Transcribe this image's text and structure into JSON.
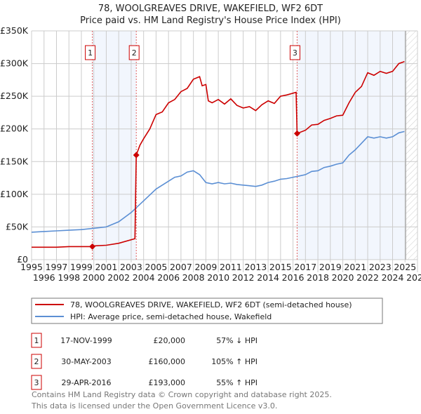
{
  "chart_data": {
    "type": "line",
    "title": "78, WOOLGREAVES DRIVE, WAKEFIELD, WF2 6DT",
    "subtitle": "Price paid vs. HM Land Registry's House Price Index (HPI)",
    "xlim": [
      1995,
      2026
    ],
    "ylim": [
      0,
      350000
    ],
    "x_ticks": [
      "1995",
      "1996",
      "1997",
      "1998",
      "1999",
      "2000",
      "2001",
      "2002",
      "2003",
      "2004",
      "2005",
      "2006",
      "2007",
      "2008",
      "2009",
      "2010",
      "2011",
      "2012",
      "2013",
      "2014",
      "2015",
      "2016",
      "2017",
      "2018",
      "2019",
      "2020",
      "2021",
      "2022",
      "2023",
      "2024",
      "2025",
      "2026"
    ],
    "y_ticks": [
      {
        "value": 0,
        "label": "£0"
      },
      {
        "value": 50000,
        "label": "£50K"
      },
      {
        "value": 100000,
        "label": "£100K"
      },
      {
        "value": 150000,
        "label": "£150K"
      },
      {
        "value": 200000,
        "label": "£200K"
      },
      {
        "value": 250000,
        "label": "£250K"
      },
      {
        "value": 300000,
        "label": "£300K"
      },
      {
        "value": 350000,
        "label": "£350K"
      }
    ],
    "grid": true,
    "data_end": 2025.05,
    "shaded_periods": [
      [
        1999.88,
        2003.41
      ],
      [
        2016.33,
        2025.05
      ]
    ],
    "series": [
      {
        "name": "78, WOOLGREAVES DRIVE, WAKEFIELD, WF2 6DT (semi-detached house)",
        "color": "#cc0000",
        "x": [
          1995,
          1996,
          1997,
          1998,
          1999.88,
          2000,
          2001,
          2002,
          2003.3,
          2003.41,
          2003.7,
          2004,
          2004.5,
          2005,
          2005.5,
          2006,
          2006.5,
          2007,
          2007.5,
          2008,
          2008.5,
          2008.7,
          2009,
          2009.2,
          2009.5,
          2010,
          2010.5,
          2011,
          2011.5,
          2012,
          2012.5,
          2013,
          2013.5,
          2014,
          2014.5,
          2015,
          2015.5,
          2016.25,
          2016.33,
          2017,
          2017.5,
          2018,
          2018.5,
          2019,
          2019.5,
          2020,
          2020.5,
          2021,
          2021.5,
          2022,
          2022.5,
          2023,
          2023.5,
          2024,
          2024.5,
          2024.95
        ],
        "y": [
          19000,
          19000,
          19000,
          20000,
          20000,
          21000,
          22000,
          25000,
          32000,
          160000,
          175000,
          185000,
          200000,
          222000,
          226000,
          240000,
          245000,
          257000,
          262000,
          276000,
          280000,
          266000,
          268000,
          243000,
          240000,
          245000,
          238000,
          246000,
          236000,
          232000,
          234000,
          228000,
          237000,
          243000,
          239000,
          250000,
          252000,
          256000,
          193000,
          198000,
          206000,
          207000,
          213000,
          216000,
          220000,
          221000,
          240000,
          256000,
          265000,
          286000,
          282000,
          288000,
          285000,
          288000,
          300000,
          303000
        ]
      },
      {
        "name": "HPI: Average price, semi-detached house, Wakefield",
        "color": "#5b8fd4",
        "x": [
          1995,
          1996,
          1997,
          1998,
          1999,
          2000,
          2001,
          2002,
          2003,
          2004,
          2005,
          2006,
          2006.5,
          2007,
          2007.5,
          2008,
          2008.5,
          2009,
          2009.5,
          2010,
          2010.5,
          2011,
          2011.5,
          2012,
          2012.5,
          2013,
          2013.5,
          2014,
          2014.5,
          2015,
          2015.5,
          2016,
          2016.5,
          2017,
          2017.5,
          2018,
          2018.5,
          2019,
          2019.5,
          2020,
          2020.5,
          2021,
          2021.5,
          2022,
          2022.5,
          2023,
          2023.5,
          2024,
          2024.5,
          2024.95
        ],
        "y": [
          42000,
          43000,
          44000,
          45000,
          46000,
          48000,
          50000,
          58000,
          72000,
          90000,
          108000,
          120000,
          126000,
          128000,
          134000,
          136000,
          130000,
          118000,
          116000,
          118000,
          116000,
          117000,
          115000,
          114000,
          113000,
          112000,
          114000,
          118000,
          120000,
          123000,
          124000,
          126000,
          128000,
          130000,
          135000,
          136000,
          141000,
          143000,
          146000,
          148000,
          160000,
          168000,
          178000,
          188000,
          186000,
          188000,
          186000,
          188000,
          194000,
          196000
        ]
      }
    ],
    "sales": [
      {
        "id": "1",
        "x": 1999.88,
        "price": 20000,
        "date": "17-NOV-1999",
        "price_label": "£20,000",
        "hpi": "57% ↓ HPI"
      },
      {
        "id": "2",
        "x": 2003.41,
        "price": 160000,
        "date": "30-MAY-2003",
        "price_label": "£160,000",
        "hpi": "105% ↑ HPI"
      },
      {
        "id": "3",
        "x": 2016.33,
        "price": 193000,
        "date": "29-APR-2016",
        "price_label": "£193,000",
        "hpi": "55% ↑ HPI"
      }
    ],
    "legend_position": "below"
  },
  "footer": {
    "line1": "Contains HM Land Registry data © Crown copyright and database right 2025.",
    "line2": "This data is licensed under the Open Government Licence v3.0."
  }
}
